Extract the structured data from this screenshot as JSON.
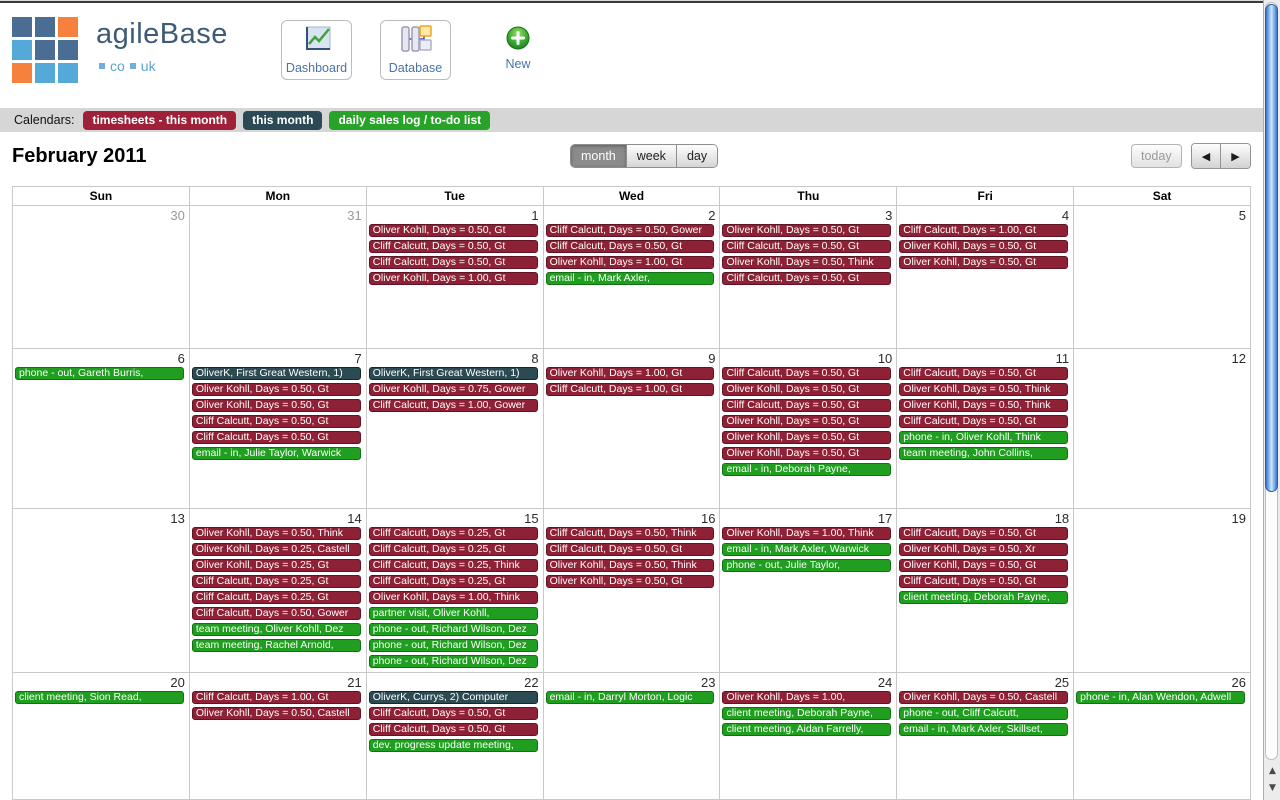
{
  "header": {
    "logo": {
      "title": "agileBase",
      "tld": [
        "co",
        "uk"
      ],
      "grid_colors": [
        "#4a6d94",
        "#4a6d94",
        "#f5813d",
        "#55a9d8",
        "#4a6d94",
        "#4a6d94",
        "#f5813d",
        "#55a9d8",
        "#55a9d8"
      ]
    },
    "dashboard_label": "Dashboard",
    "database_label": "Database",
    "new_label": "New"
  },
  "calendars_bar": {
    "label": "Calendars:",
    "pills": [
      {
        "label": "timesheets - this month",
        "color": "#9e2139"
      },
      {
        "label": "this month",
        "color": "#2c4a55"
      },
      {
        "label": "daily sales log / to-do list",
        "color": "#28a228"
      }
    ]
  },
  "toolbar": {
    "title": "February 2011",
    "views": [
      "month",
      "week",
      "day"
    ],
    "selected_view": "month",
    "today_label": "today",
    "prev_icon": "◀",
    "next_icon": "▶"
  },
  "scrollbar": {
    "up_icon": "▲",
    "down_icon": "▼"
  },
  "calendar_colors": {
    "timesheets": {
      "bg": "#8e2135",
      "border": "#5f1523"
    },
    "sales": {
      "bg": "#1f9e1f",
      "border": "#147014"
    },
    "month": {
      "bg": "#2c4a52",
      "border": "#16262c"
    }
  },
  "calendar": {
    "day_headers": [
      "Sun",
      "Mon",
      "Tue",
      "Wed",
      "Thu",
      "Fri",
      "Sat"
    ],
    "weeks": [
      {
        "days": [
          {
            "num": "30",
            "other": true,
            "events": []
          },
          {
            "num": "31",
            "other": true,
            "events": []
          },
          {
            "num": "1",
            "events": [
              {
                "text": "Oliver Kohll, Days = 0.50, Gt",
                "cal": "timesheets"
              },
              {
                "text": "Cliff Calcutt, Days = 0.50, Gt",
                "cal": "timesheets"
              },
              {
                "text": "Cliff Calcutt, Days = 0.50, Gt",
                "cal": "timesheets"
              },
              {
                "text": "Oliver Kohll, Days = 1.00, Gt",
                "cal": "timesheets"
              }
            ]
          },
          {
            "num": "2",
            "events": [
              {
                "text": "Cliff Calcutt, Days = 0.50, Gower",
                "cal": "timesheets"
              },
              {
                "text": "Cliff Calcutt, Days = 0.50, Gt",
                "cal": "timesheets"
              },
              {
                "text": "Oliver Kohll, Days = 1.00, Gt",
                "cal": "timesheets"
              },
              {
                "text": "email - in, Mark Axler,",
                "cal": "sales"
              }
            ]
          },
          {
            "num": "3",
            "events": [
              {
                "text": "Oliver Kohll, Days = 0.50, Gt",
                "cal": "timesheets"
              },
              {
                "text": "Cliff Calcutt, Days = 0.50, Gt",
                "cal": "timesheets"
              },
              {
                "text": "Oliver Kohll, Days = 0.50, Think",
                "cal": "timesheets"
              },
              {
                "text": "Cliff Calcutt, Days = 0.50, Gt",
                "cal": "timesheets"
              }
            ]
          },
          {
            "num": "4",
            "events": [
              {
                "text": "Cliff Calcutt, Days = 1.00, Gt",
                "cal": "timesheets"
              },
              {
                "text": "Oliver Kohll, Days = 0.50, Gt",
                "cal": "timesheets"
              },
              {
                "text": "Oliver Kohll, Days = 0.50, Gt",
                "cal": "timesheets"
              }
            ]
          },
          {
            "num": "5",
            "events": []
          }
        ]
      },
      {
        "days": [
          {
            "num": "6",
            "events": [
              {
                "text": "phone - out, Gareth Burris,",
                "cal": "sales"
              }
            ]
          },
          {
            "num": "7",
            "events": [
              {
                "text": "OliverK, First Great Western, 1)",
                "cal": "month"
              },
              {
                "text": "Oliver Kohll, Days = 0.50, Gt",
                "cal": "timesheets"
              },
              {
                "text": "Oliver Kohll, Days = 0.50, Gt",
                "cal": "timesheets"
              },
              {
                "text": "Cliff Calcutt, Days = 0.50, Gt",
                "cal": "timesheets"
              },
              {
                "text": "Cliff Calcutt, Days = 0.50, Gt",
                "cal": "timesheets"
              },
              {
                "text": "email - in, Julie Taylor, Warwick",
                "cal": "sales"
              }
            ]
          },
          {
            "num": "8",
            "events": [
              {
                "text": "OliverK, First Great Western, 1)",
                "cal": "month"
              },
              {
                "text": "Oliver Kohll, Days = 0.75, Gower",
                "cal": "timesheets"
              },
              {
                "text": "Cliff Calcutt, Days = 1.00, Gower",
                "cal": "timesheets"
              }
            ]
          },
          {
            "num": "9",
            "events": [
              {
                "text": "Oliver Kohll, Days = 1.00, Gt",
                "cal": "timesheets"
              },
              {
                "text": "Cliff Calcutt, Days = 1.00, Gt",
                "cal": "timesheets"
              }
            ]
          },
          {
            "num": "10",
            "events": [
              {
                "text": "Cliff Calcutt, Days = 0.50, Gt",
                "cal": "timesheets"
              },
              {
                "text": "Oliver Kohll, Days = 0.50, Gt",
                "cal": "timesheets"
              },
              {
                "text": "Cliff Calcutt, Days = 0.50, Gt",
                "cal": "timesheets"
              },
              {
                "text": "Oliver Kohll, Days = 0.50, Gt",
                "cal": "timesheets"
              },
              {
                "text": "Oliver Kohll, Days = 0.50, Gt",
                "cal": "timesheets"
              },
              {
                "text": "Oliver Kohll, Days = 0.50, Gt",
                "cal": "timesheets"
              },
              {
                "text": "email - in, Deborah Payne,",
                "cal": "sales"
              }
            ]
          },
          {
            "num": "11",
            "events": [
              {
                "text": "Cliff Calcutt, Days = 0.50, Gt",
                "cal": "timesheets"
              },
              {
                "text": "Oliver Kohll, Days = 0.50, Think",
                "cal": "timesheets"
              },
              {
                "text": "Oliver Kohll, Days = 0.50, Think",
                "cal": "timesheets"
              },
              {
                "text": "Cliff Calcutt, Days = 0.50, Gt",
                "cal": "timesheets"
              },
              {
                "text": "phone - in, Oliver Kohll, Think",
                "cal": "sales"
              },
              {
                "text": "team meeting, John Collins,",
                "cal": "sales"
              }
            ]
          },
          {
            "num": "12",
            "events": []
          }
        ]
      },
      {
        "days": [
          {
            "num": "13",
            "events": []
          },
          {
            "num": "14",
            "events": [
              {
                "text": "Oliver Kohll, Days = 0.50, Think",
                "cal": "timesheets"
              },
              {
                "text": "Oliver Kohll, Days = 0.25, Castell",
                "cal": "timesheets"
              },
              {
                "text": "Oliver Kohll, Days = 0.25, Gt",
                "cal": "timesheets"
              },
              {
                "text": "Cliff Calcutt, Days = 0.25, Gt",
                "cal": "timesheets"
              },
              {
                "text": "Cliff Calcutt, Days = 0.25, Gt",
                "cal": "timesheets"
              },
              {
                "text": "Cliff Calcutt, Days = 0.50, Gower",
                "cal": "timesheets"
              },
              {
                "text": "team meeting, Oliver Kohll, Dez",
                "cal": "sales"
              },
              {
                "text": "team meeting, Rachel Arnold,",
                "cal": "sales"
              }
            ]
          },
          {
            "num": "15",
            "events": [
              {
                "text": "Cliff Calcutt, Days = 0.25, Gt",
                "cal": "timesheets"
              },
              {
                "text": "Cliff Calcutt, Days = 0.25, Gt",
                "cal": "timesheets"
              },
              {
                "text": "Cliff Calcutt, Days = 0.25, Think",
                "cal": "timesheets"
              },
              {
                "text": "Cliff Calcutt, Days = 0.25, Gt",
                "cal": "timesheets"
              },
              {
                "text": "Oliver Kohll, Days = 1.00, Think",
                "cal": "timesheets"
              },
              {
                "text": "partner visit, Oliver Kohll,",
                "cal": "sales"
              },
              {
                "text": "phone - out, Richard Wilson, Dez",
                "cal": "sales"
              },
              {
                "text": "phone - out, Richard Wilson, Dez",
                "cal": "sales"
              },
              {
                "text": "phone - out, Richard Wilson, Dez",
                "cal": "sales"
              }
            ]
          },
          {
            "num": "16",
            "events": [
              {
                "text": "Cliff Calcutt, Days = 0.50, Think",
                "cal": "timesheets"
              },
              {
                "text": "Cliff Calcutt, Days = 0.50, Gt",
                "cal": "timesheets"
              },
              {
                "text": "Oliver Kohll, Days = 0.50, Think",
                "cal": "timesheets"
              },
              {
                "text": "Oliver Kohll, Days = 0.50, Gt",
                "cal": "timesheets"
              }
            ]
          },
          {
            "num": "17",
            "events": [
              {
                "text": "Oliver Kohll, Days = 1.00, Think",
                "cal": "timesheets"
              },
              {
                "text": "email - in, Mark Axler, Warwick",
                "cal": "sales"
              },
              {
                "text": "phone - out, Julie Taylor,",
                "cal": "sales"
              }
            ]
          },
          {
            "num": "18",
            "events": [
              {
                "text": "Cliff Calcutt, Days = 0.50, Gt",
                "cal": "timesheets"
              },
              {
                "text": "Oliver Kohll, Days = 0.50, Xr",
                "cal": "timesheets"
              },
              {
                "text": "Oliver Kohll, Days = 0.50, Gt",
                "cal": "timesheets"
              },
              {
                "text": "Cliff Calcutt, Days = 0.50, Gt",
                "cal": "timesheets"
              },
              {
                "text": "client meeting, Deborah Payne,",
                "cal": "sales"
              }
            ]
          },
          {
            "num": "19",
            "events": []
          }
        ]
      },
      {
        "days": [
          {
            "num": "20",
            "events": [
              {
                "text": "client meeting, Sion Read,",
                "cal": "sales"
              }
            ]
          },
          {
            "num": "21",
            "events": [
              {
                "text": "Cliff Calcutt, Days = 1.00, Gt",
                "cal": "timesheets"
              },
              {
                "text": "Oliver Kohll, Days = 0.50, Castell",
                "cal": "timesheets"
              }
            ]
          },
          {
            "num": "22",
            "events": [
              {
                "text": "OliverK, Currys, 2) Computer",
                "cal": "month"
              },
              {
                "text": "Cliff Calcutt, Days = 0.50, Gt",
                "cal": "timesheets"
              },
              {
                "text": "Cliff Calcutt, Days = 0.50, Gt",
                "cal": "timesheets"
              },
              {
                "text": "dev. progress update meeting,",
                "cal": "sales"
              }
            ]
          },
          {
            "num": "23",
            "events": [
              {
                "text": "email - in, Darryl Morton, Logic",
                "cal": "sales"
              }
            ]
          },
          {
            "num": "24",
            "events": [
              {
                "text": "Oliver Kohll, Days = 1.00,",
                "cal": "timesheets"
              },
              {
                "text": "client meeting, Deborah Payne,",
                "cal": "sales"
              },
              {
                "text": "client meeting, Aidan Farrelly,",
                "cal": "sales"
              }
            ]
          },
          {
            "num": "25",
            "events": [
              {
                "text": "Oliver Kohll, Days = 0.50, Castell",
                "cal": "timesheets"
              },
              {
                "text": "phone - out, Cliff Calcutt,",
                "cal": "sales"
              },
              {
                "text": "email - in, Mark Axler, Skillset,",
                "cal": "sales"
              }
            ]
          },
          {
            "num": "26",
            "events": [
              {
                "text": "phone - in, Alan Wendon, Adwell",
                "cal": "sales"
              }
            ]
          }
        ]
      }
    ]
  }
}
